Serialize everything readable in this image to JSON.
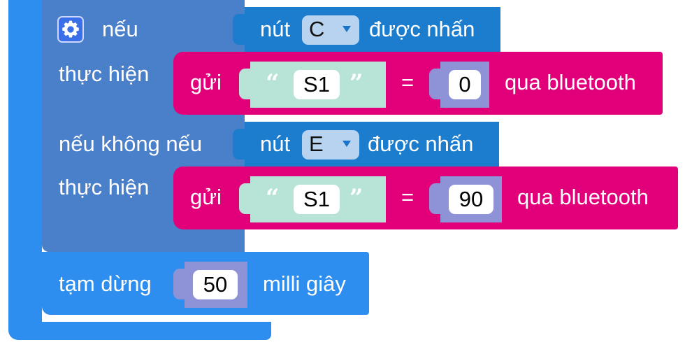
{
  "if_block": {
    "keyword_if": "nếu",
    "keyword_do_1": "thực hiện",
    "keyword_else_if": "nếu không nếu",
    "keyword_do_2": "thực hiện",
    "settings_icon": "gear-icon"
  },
  "condition_1": {
    "prefix": "nút",
    "button": "C",
    "suffix": "được nhấn"
  },
  "condition_2": {
    "prefix": "nút",
    "button": "E",
    "suffix": "được nhấn"
  },
  "send_1": {
    "verb": "gửi",
    "open_quote": "“",
    "key": "S1",
    "close_quote": "”",
    "equals": "=",
    "value": "0",
    "suffix": "qua bluetooth"
  },
  "send_2": {
    "verb": "gửi",
    "open_quote": "“",
    "key": "S1",
    "close_quote": "”",
    "equals": "=",
    "value": "90",
    "suffix": "qua bluetooth"
  },
  "pause": {
    "label": "tạm dừng",
    "value": "50",
    "unit": "milli giây"
  },
  "colors": {
    "outer_loop": "#2d8ef0",
    "control": "#4a7fc9",
    "input_block": "#1c7dce",
    "dropdown": "#b7d3ef",
    "send_block": "#e2007a",
    "text_block": "#b7e4d6",
    "math_block": "#8d93d6",
    "pause_block": "#2d8ef0"
  }
}
